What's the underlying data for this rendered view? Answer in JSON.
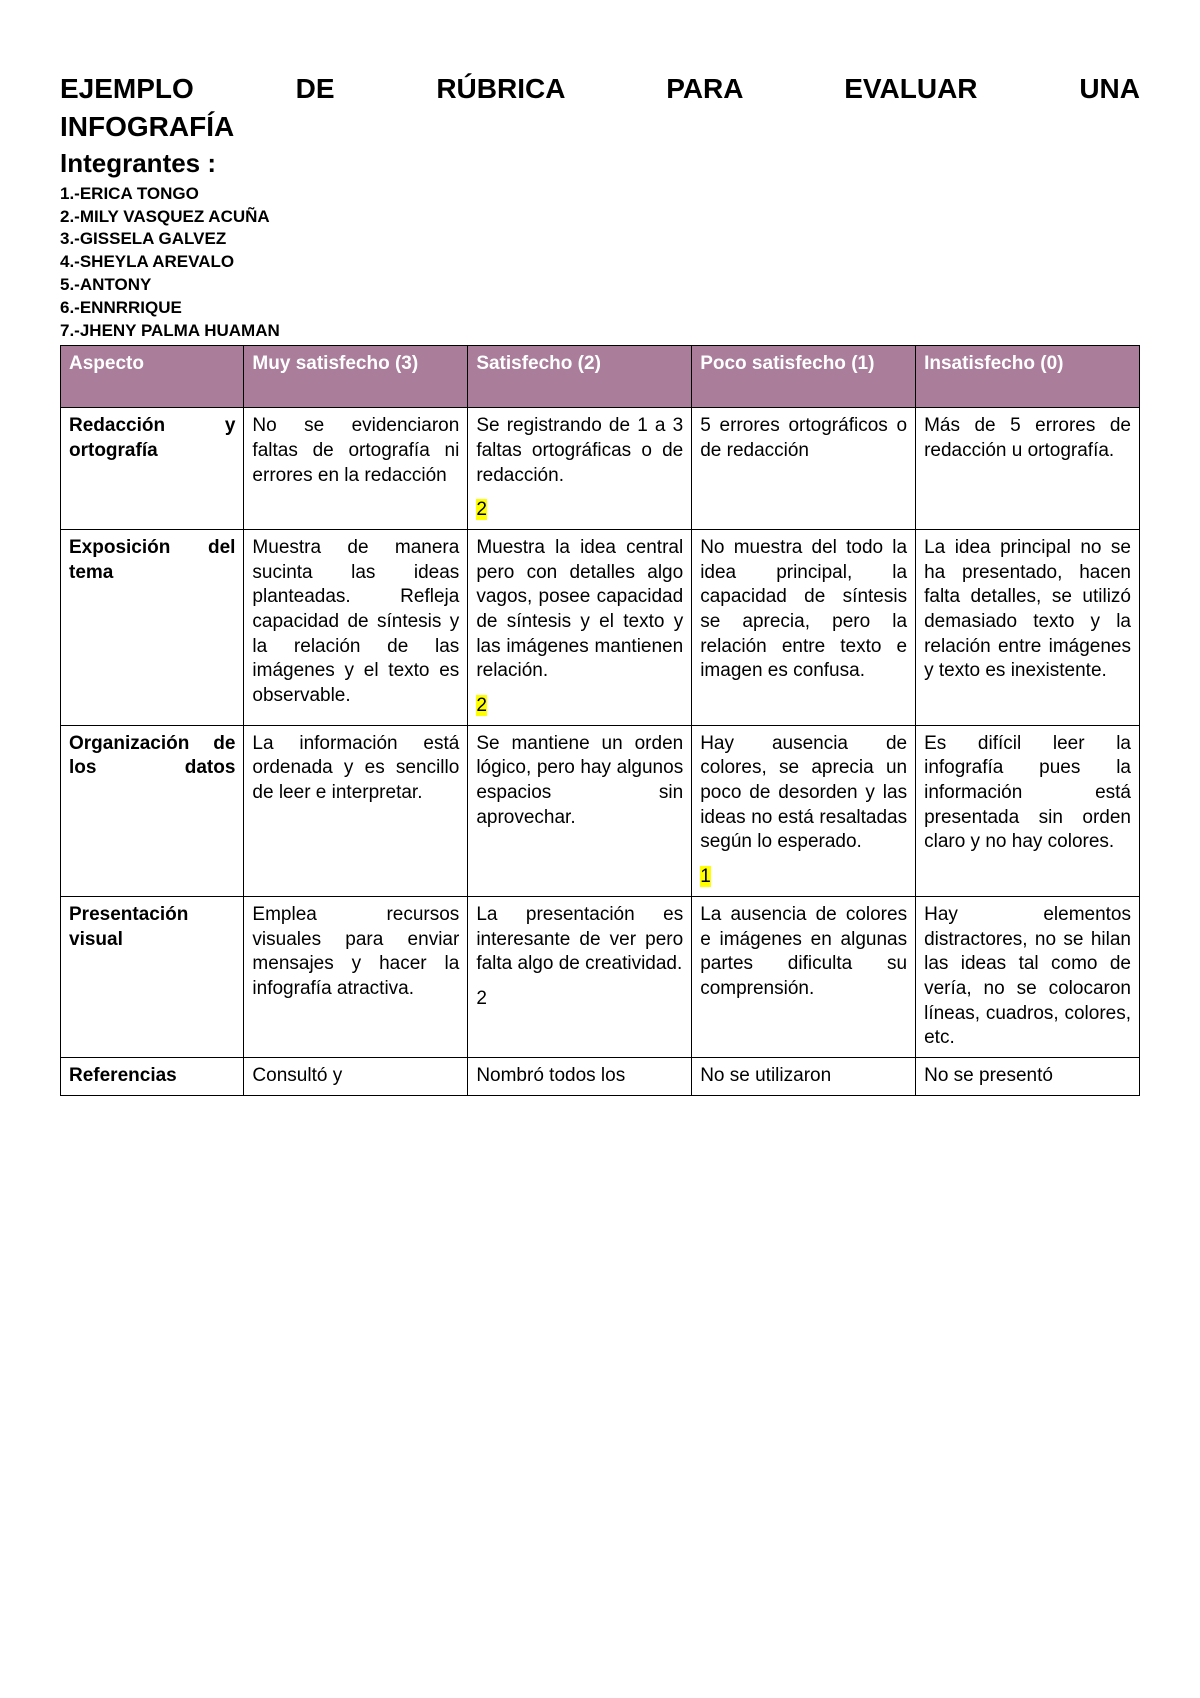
{
  "title_line1": "EJEMPLO DE RÚBRICA PARA EVALUAR UNA",
  "title_line2": "INFOGRAFÍA",
  "subtitle": "Integrantes :",
  "members": [
    "1.-ERICA TONGO",
    "2.-MILY VASQUEZ ACUÑA",
    "3.-GISSELA GALVEZ",
    "4.-SHEYLA AREVALO",
    "5.-ANTONY",
    "6.-ENNRRIQUE",
    "7.-JHENY PALMA HUAMAN"
  ],
  "headers": {
    "col1": "Aspecto",
    "col2": "Muy satisfecho (3)",
    "col3": "Satisfecho (2)",
    "col4": "Poco satisfecho (1)",
    "col5": "Insatisfecho (0)"
  },
  "rows": [
    {
      "aspect": "Redacción y ortografía",
      "aspect_single": false,
      "c2": "No se evidenciaron faltas de ortografía ni errores en la redacción",
      "c2_score": "",
      "c2_highlight": false,
      "c3": "Se registrando de 1 a 3 faltas ortográficas o de redacción.",
      "c3_score": "2",
      "c3_highlight": true,
      "c4": "5 errores ortográficos o de redacción",
      "c4_score": "",
      "c4_highlight": false,
      "c5": "Más de 5 errores de redacción u ortografía.",
      "c5_score": "",
      "c5_highlight": false
    },
    {
      "aspect": "Exposición del tema",
      "aspect_single": false,
      "c2": "Muestra de manera sucinta las ideas planteadas. Refleja capacidad de síntesis y la relación de las imágenes y el texto es observable.",
      "c2_score": "",
      "c2_highlight": false,
      "c3": "Muestra la idea central pero con detalles algo vagos, posee capacidad de síntesis y el texto y las imágenes mantienen relación.",
      "c3_score": "2",
      "c3_highlight": true,
      "c4": "No muestra del todo la idea principal, la capacidad de síntesis se aprecia, pero la relación entre texto e imagen es confusa.",
      "c4_score": "",
      "c4_highlight": false,
      "c5": "La idea principal no se ha presentado, hacen falta detalles, se utilizó demasiado texto y la relación entre imágenes y texto es inexistente.",
      "c5_score": "",
      "c5_highlight": false
    },
    {
      "aspect": "Organización de los datos",
      "aspect_single": false,
      "c2": "La información está ordenada y es sencillo de leer e interpretar.",
      "c2_score": "",
      "c2_highlight": false,
      "c3": "Se mantiene un orden lógico, pero hay algunos espacios sin aprovechar.",
      "c3_score": "",
      "c3_highlight": false,
      "c4": "Hay ausencia de colores, se aprecia un poco de desorden y las ideas no está resaltadas según lo esperado.",
      "c4_score": "1",
      "c4_highlight": true,
      "c5": "Es difícil leer la infografía pues la información está presentada sin orden claro y no hay colores.",
      "c5_score": "",
      "c5_highlight": false
    },
    {
      "aspect": "Presentación visual",
      "aspect_single": true,
      "c2": "Emplea recursos visuales para enviar mensajes y hacer la infografía atractiva.",
      "c2_score": "",
      "c2_highlight": false,
      "c3": "La presentación es interesante de ver pero falta algo de creatividad.",
      "c3_score": "2",
      "c3_highlight": false,
      "c4": "La ausencia de colores e imágenes en algunas partes dificulta su comprensión.",
      "c4_score": "",
      "c4_highlight": false,
      "c5": "Hay elementos distractores, no se hilan las ideas tal como de vería, no se colocaron líneas, cuadros, colores, etc.",
      "c5_score": "",
      "c5_highlight": false
    },
    {
      "aspect": "Referencias",
      "aspect_single": true,
      "c2": "Consultó y",
      "c2_score": "",
      "c2_highlight": false,
      "c3": "Nombró todos los",
      "c3_score": "",
      "c3_highlight": false,
      "c4": "No se utilizaron",
      "c4_score": "",
      "c4_highlight": false,
      "c5": "No se presentó",
      "c5_score": "",
      "c5_highlight": false
    }
  ],
  "colors": {
    "header_bg": "#aa7d9b",
    "header_text": "#ffffff",
    "highlight_bg": "#ffff00",
    "border": "#000000",
    "page_bg": "#ffffff"
  }
}
